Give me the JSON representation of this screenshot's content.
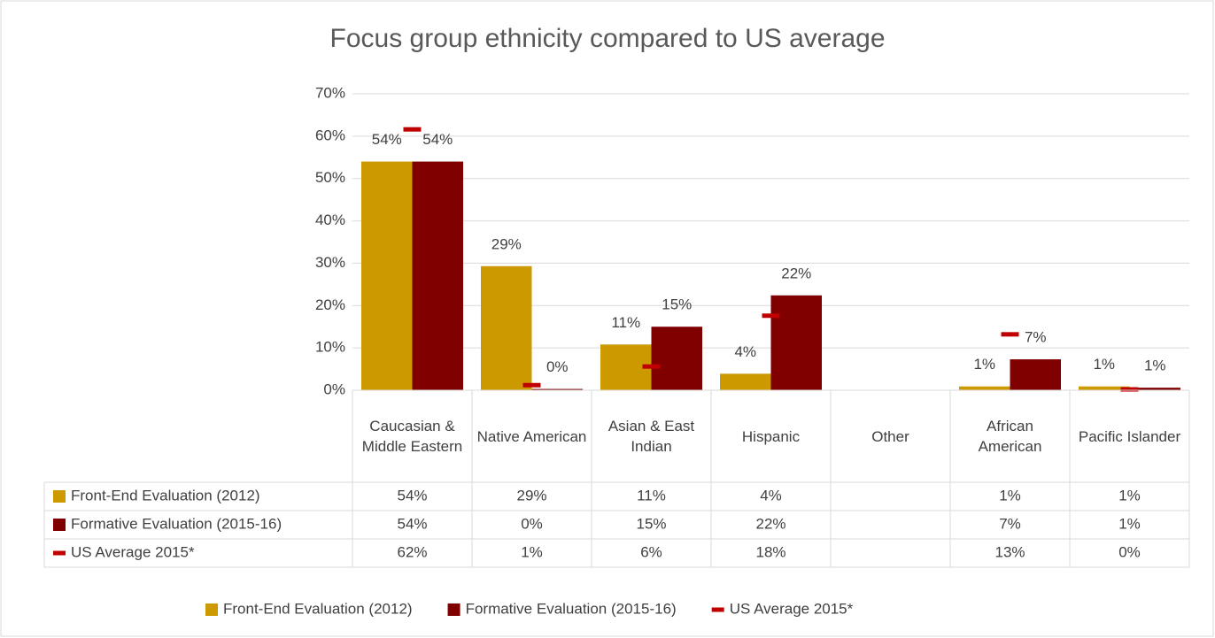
{
  "chart_data": {
    "type": "bar",
    "title": "Focus group ethnicity compared to US average",
    "categories": [
      "Caucasian & Middle Eastern",
      "Native American",
      "Asian & East Indian",
      "Hispanic",
      "Other",
      "African American",
      "Pacific Islander"
    ],
    "series": [
      {
        "name": "Front-End Evaluation (2012)",
        "color": "#cc9900",
        "values": [
          54,
          29.3,
          10.8,
          3.9,
          null,
          0.9,
          0.9
        ],
        "value_labels": [
          "54%",
          "29%",
          "11%",
          "4%",
          null,
          "1%",
          "1%"
        ]
      },
      {
        "name": "Formative Evaluation (2015-16)",
        "color": "#800000",
        "values": [
          54,
          0.3,
          15,
          22.4,
          null,
          7.3,
          0.6
        ],
        "value_labels": [
          "54%",
          "0%",
          "15%",
          "22%",
          null,
          "7%",
          "1%"
        ]
      },
      {
        "name": "US Average 2015*",
        "color": "#c00000",
        "type": "marker",
        "values": [
          61.6,
          1.2,
          5.6,
          17.6,
          null,
          13.2,
          0.2
        ],
        "value_labels": [
          "62%",
          "1%",
          "6%",
          "18%",
          null,
          "13%",
          "0%"
        ]
      }
    ],
    "ylim": [
      0,
      70
    ],
    "yticks": [
      {
        "value": 0,
        "label": "0%"
      },
      {
        "value": 10,
        "label": "10%"
      },
      {
        "value": 20,
        "label": "20%"
      },
      {
        "value": 30,
        "label": "30%"
      },
      {
        "value": 40,
        "label": "40%"
      },
      {
        "value": 50,
        "label": "50%"
      },
      {
        "value": 60,
        "label": "60%"
      },
      {
        "value": 70,
        "label": "70%"
      }
    ],
    "grid": true,
    "legend": "bottom",
    "data_table": true
  }
}
